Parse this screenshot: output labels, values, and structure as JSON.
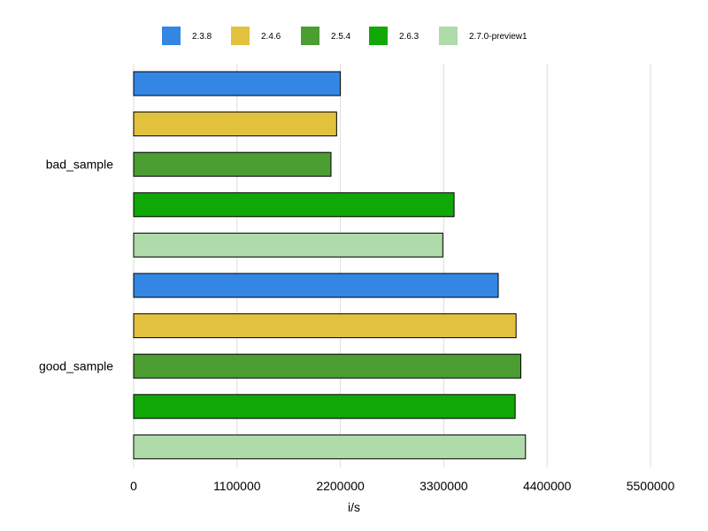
{
  "chart_data": {
    "type": "bar",
    "orientation": "horizontal",
    "categories": [
      "bad_sample",
      "good_sample"
    ],
    "series": [
      {
        "name": "2.3.8",
        "color": "#3386e4",
        "values": [
          2200000,
          3880000
        ]
      },
      {
        "name": "2.4.6",
        "color": "#e2c13e",
        "values": [
          2160000,
          4070000
        ]
      },
      {
        "name": "2.5.4",
        "color": "#4a9e32",
        "values": [
          2100000,
          4120000
        ]
      },
      {
        "name": "2.6.3",
        "color": "#10a806",
        "values": [
          3410000,
          4060000
        ]
      },
      {
        "name": "2.7.0-preview1",
        "color": "#afdaaa",
        "values": [
          3290000,
          4170000
        ]
      }
    ],
    "xlabel": "i/s",
    "ylabel": "",
    "xlim": [
      0,
      5500000
    ],
    "xticks": [
      0,
      1100000,
      2200000,
      3300000,
      4400000,
      5500000
    ],
    "xtick_labels": [
      "0",
      "1100000",
      "2200000",
      "3300000",
      "4400000",
      "5500000"
    ],
    "grid": true,
    "legend_position": "top"
  }
}
